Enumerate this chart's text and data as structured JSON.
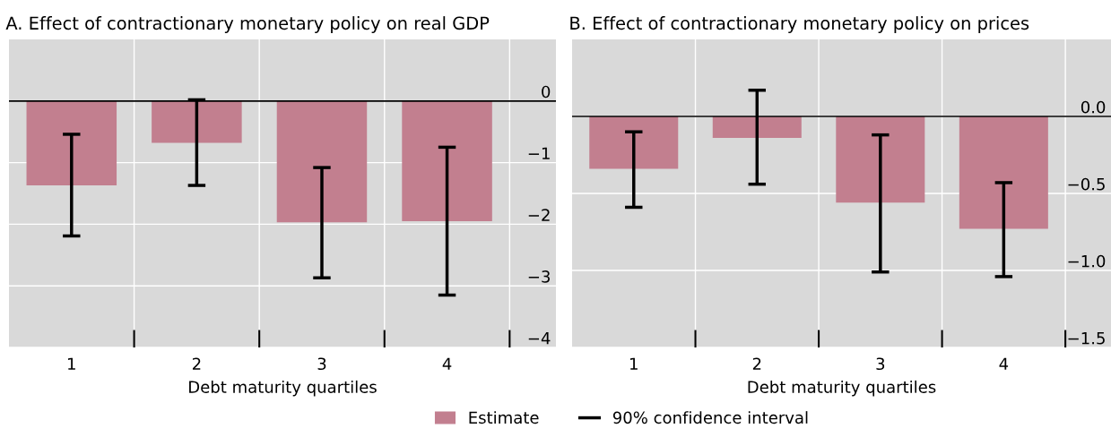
{
  "chart_data": [
    {
      "type": "bar",
      "title": "A. Effect of contractionary monetary policy on real GDP",
      "xlabel": "Debt maturity quartiles",
      "categories": [
        "1",
        "2",
        "3",
        "4"
      ],
      "series": [
        {
          "name": "Estimate",
          "color": "#c27f8f",
          "values": [
            -1.37,
            -0.68,
            -1.97,
            -1.95
          ],
          "errors": [
            [
              -2.19,
              -0.54
            ],
            [
              -1.37,
              0.02
            ],
            [
              -2.87,
              -1.08
            ],
            [
              -3.15,
              -0.75
            ]
          ]
        }
      ],
      "ylim": [
        -4,
        1
      ],
      "yticks": [
        -4,
        -3,
        -2,
        -1,
        0
      ],
      "ref_lines": [
        {
          "axis": "y",
          "value": 0,
          "color": "#000000"
        }
      ],
      "grid": true,
      "legend": "bottom",
      "annotations": [
        "90% confidence interval"
      ]
    },
    {
      "type": "bar",
      "title": "B. Effect of contractionary monetary policy on prices",
      "xlabel": "Debt maturity quartiles",
      "categories": [
        "1",
        "2",
        "3",
        "4"
      ],
      "series": [
        {
          "color": "#c27f8f",
          "values": [
            -0.34,
            -0.14,
            -0.56,
            -0.73
          ],
          "errors": [
            [
              -0.59,
              -0.1
            ],
            [
              -0.44,
              0.17
            ],
            [
              -1.01,
              -0.12
            ],
            [
              -1.04,
              -0.43
            ]
          ]
        }
      ],
      "ylim": [
        -1.5,
        0.5
      ],
      "yticks": [
        {
          "value": -1.5,
          "label": "−1.5"
        },
        {
          "value": -1.0,
          "label": "−1.0"
        },
        {
          "value": -0.5,
          "label": "−0.5"
        },
        {
          "value": 0.0,
          "label": "0.0"
        }
      ],
      "ref_lines": [
        {
          "axis": "y",
          "value": 0,
          "color": "#000000"
        }
      ],
      "grid": true
    }
  ]
}
